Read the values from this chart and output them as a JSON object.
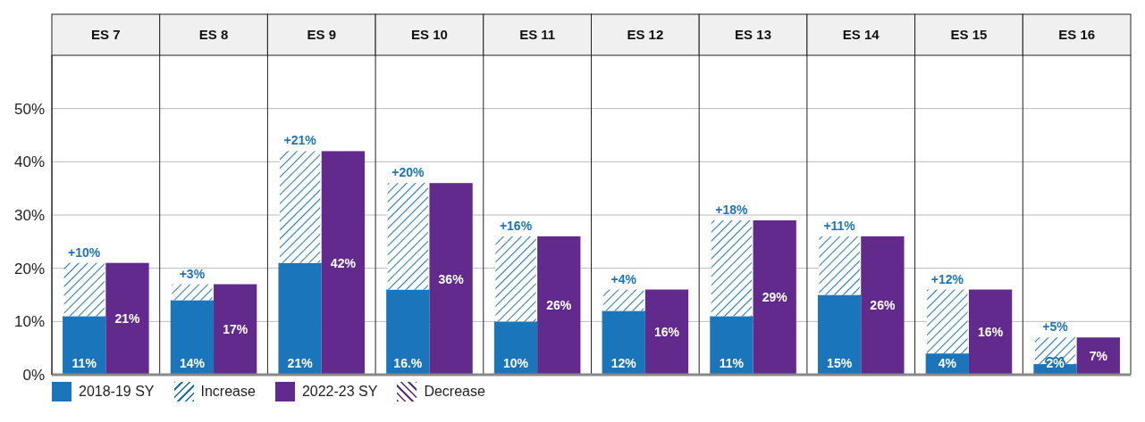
{
  "chart_data": {
    "type": "bar",
    "categories": [
      "ES 7",
      "ES 8",
      "ES 9",
      "ES 10",
      "ES 11",
      "ES 12",
      "ES 13",
      "ES 14",
      "ES 15",
      "ES 16"
    ],
    "series": [
      {
        "name": "2018-19 SY",
        "color": "#1b75bb",
        "values": [
          11,
          14,
          21,
          16,
          10,
          12,
          11,
          15,
          4,
          2
        ],
        "value_labels": [
          "11%",
          "14%",
          "21%",
          "16.%",
          "10%",
          "12%",
          "11%",
          "15%",
          "4%",
          "2%"
        ]
      },
      {
        "name": "Increase",
        "color": "#1b75bb",
        "values": [
          10,
          3,
          21,
          20,
          16,
          4,
          18,
          11,
          12,
          5
        ],
        "base": [
          11,
          14,
          21,
          16,
          10,
          12,
          11,
          15,
          4,
          2
        ],
        "value_labels": [
          "+10%",
          "+3%",
          "+21%",
          "+20%",
          "+16%",
          "+4%",
          "+18%",
          "+11%",
          "+12%",
          "+5%"
        ]
      },
      {
        "name": "2022-23 SY",
        "color": "#622a8c",
        "values": [
          21,
          17,
          42,
          36,
          26,
          16,
          29,
          26,
          16,
          7
        ],
        "value_labels": [
          "21%",
          "17%",
          "42%",
          "36%",
          "26%",
          "16%",
          "29%",
          "26%",
          "16%",
          "7%"
        ]
      },
      {
        "name": "Decrease",
        "color": "#622a8c",
        "values": [
          null,
          null,
          null,
          null,
          null,
          null,
          null,
          null,
          null,
          null
        ]
      }
    ],
    "ylim": [
      0,
      60
    ],
    "yticks": [
      {
        "value": 0,
        "label": "0%"
      },
      {
        "value": 10,
        "label": "10%"
      },
      {
        "value": 20,
        "label": "20%"
      },
      {
        "value": 30,
        "label": "30%"
      },
      {
        "value": 40,
        "label": "40%"
      },
      {
        "value": 50,
        "label": "50%"
      }
    ],
    "grid": "y",
    "legend": "bottom left"
  }
}
